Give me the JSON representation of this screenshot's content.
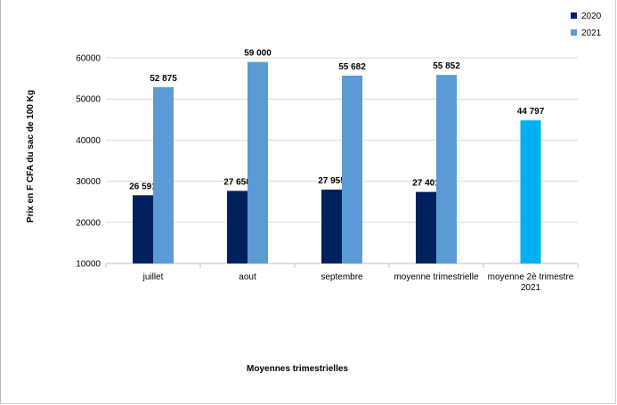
{
  "chart_data": {
    "type": "bar",
    "title": "",
    "xlabel": "Moyennes trimestrielles",
    "ylabel": "Prix en F CFA du sac de 100 Kg",
    "ylim": [
      10000,
      60000
    ],
    "yticks": [
      10000,
      20000,
      30000,
      40000,
      50000,
      60000
    ],
    "grid": true,
    "legend_position": "top-right",
    "categories": [
      "juillet",
      "aout",
      "septembre",
      "moyenne trimestrielle",
      "moyenne 2è  trimestre 2021"
    ],
    "category_lines": [
      [
        "juillet"
      ],
      [
        "aout"
      ],
      [
        "septembre"
      ],
      [
        "moyenne trimestrielle"
      ],
      [
        "moyenne 2è  trimestre",
        "2021"
      ]
    ],
    "series": [
      {
        "name": "2020",
        "color": "#002060",
        "values": [
          26591,
          27658,
          27955,
          27401,
          null
        ],
        "labels": [
          "26 591",
          "27 658",
          "27 955",
          "27 401",
          null
        ]
      },
      {
        "name": "2021",
        "color": "#5b9bd5",
        "values": [
          52875,
          59000,
          55682,
          55852,
          null
        ],
        "labels": [
          "52 875",
          "59 000",
          "55 682",
          "55 852",
          null
        ]
      }
    ],
    "extra_bar": {
      "category_index": 4,
      "value": 44797,
      "label": "44 797",
      "color": "#00b0f0"
    }
  }
}
